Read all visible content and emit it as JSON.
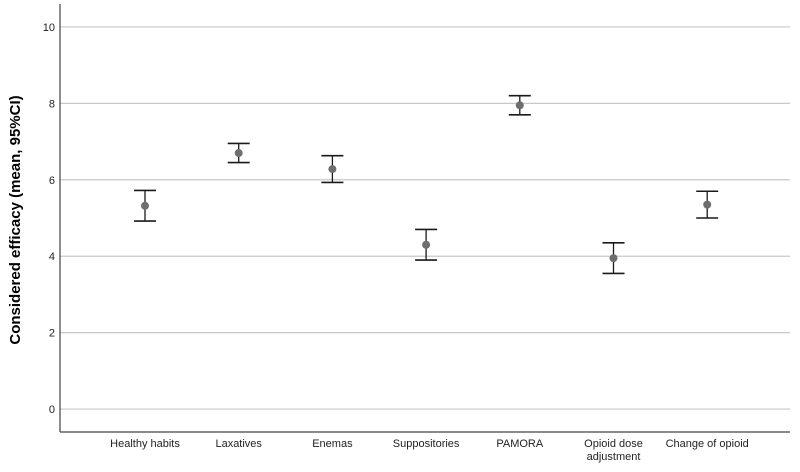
{
  "chart_data": {
    "type": "errorbar",
    "ylabel": "Considered efficacy (mean, 95%CI)",
    "xlabel": "",
    "ylim": [
      -0.6,
      10.6
    ],
    "yticks": [
      0,
      2,
      4,
      6,
      8,
      10
    ],
    "grid": "horizontal",
    "categories": [
      [
        "Healthy habits"
      ],
      [
        "Laxatives"
      ],
      [
        "Enemas"
      ],
      [
        "Suppositories"
      ],
      [
        "PAMORA"
      ],
      [
        "Opioid dose",
        "adjustment"
      ],
      [
        "Change of opioid"
      ]
    ],
    "series": [
      {
        "mean": [
          5.32,
          6.7,
          6.28,
          4.3,
          7.95,
          3.95,
          5.35
        ],
        "lower": [
          4.92,
          6.45,
          5.93,
          3.9,
          7.7,
          3.55,
          5.0
        ],
        "upper": [
          5.72,
          6.95,
          6.63,
          4.7,
          8.2,
          4.35,
          5.7
        ]
      }
    ],
    "colors": {
      "point": "#6e6e6e",
      "errorbar": "#1a1a1a",
      "grid": "#c8c8c8",
      "axis": "#444444"
    }
  }
}
